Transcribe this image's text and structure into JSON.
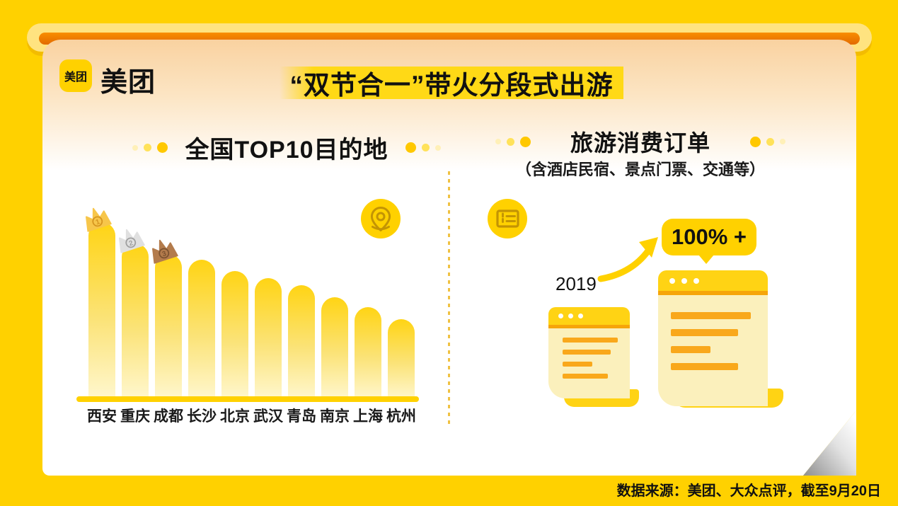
{
  "colors": {
    "background": "#FFD100",
    "banner_yellow": "#FFD916",
    "roller_orange": "#F08200",
    "bar_top": "#FFD414",
    "bar_bottom": "#FFF7CE",
    "receipt_cream": "#FBF0BC",
    "receipt_line_orange": "#F9A81B",
    "icon_stroke": "#C39404",
    "text_black": "#111111"
  },
  "header": {
    "logo_badge": "美团",
    "logo_text": "美团",
    "title": "“双节合一”带火分段式出游"
  },
  "left_panel": {
    "title": "全国TOP10目的地",
    "icon": "location-pin-icon"
  },
  "right_panel": {
    "title": "旅游消费订单",
    "subtitle": "（含酒店民宿、景点门票、交通等）",
    "icon": "ticket-icon",
    "baseline_year_label": "2019",
    "growth_badge_label": "100% +"
  },
  "footer": {
    "source": "数据来源：美团、大众点评，截至9月20日"
  },
  "chart_data": {
    "type": "bar",
    "title": "全国TOP10目的地",
    "categories": [
      "西安",
      "重庆",
      "成都",
      "长沙",
      "北京",
      "武汉",
      "青岛",
      "南京",
      "上海",
      "杭州"
    ],
    "values": [
      250,
      220,
      205,
      197,
      181,
      171,
      161,
      144,
      130,
      113
    ],
    "value_note": "no numeric axis shown in source; values are relative bar heights in pixels (rank chart)",
    "orientation": "vertical",
    "xlabel": "",
    "ylabel": "",
    "grid": false,
    "legend": false,
    "crowns": [
      {
        "rank": "1",
        "body": "#F7C64A",
        "accent": "#D6951F"
      },
      {
        "rank": "2",
        "body": "#E0E0E0",
        "accent": "#9F9F9F"
      },
      {
        "rank": "3",
        "body": "#B37B4C",
        "accent": "#7C5230"
      }
    ]
  }
}
